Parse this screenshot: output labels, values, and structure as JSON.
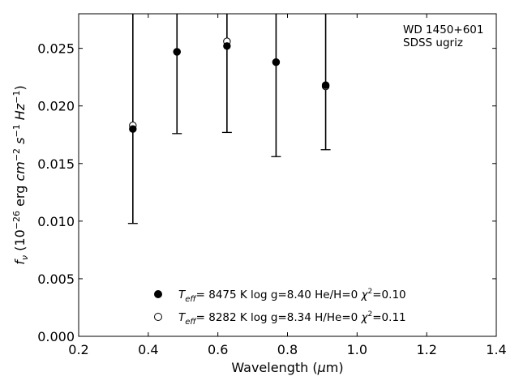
{
  "chart_data": {
    "type": "scatter",
    "xlim": [
      0.2,
      1.4
    ],
    "ylim": [
      0.0,
      0.028
    ],
    "x_ticks": [
      "0.2",
      "0.4",
      "0.6",
      "0.8",
      "1.0",
      "1.2",
      "1.4"
    ],
    "y_ticks": [
      "0.000",
      "0.005",
      "0.010",
      "0.015",
      "0.020",
      "0.025"
    ],
    "xlabel": "Wavelength (μm)",
    "ylabel": "f_ν (10^-26 erg cm^-2 s^-1 Hz^-1)",
    "annotation": [
      "WD 1450+601",
      "SDSS ugriz"
    ],
    "grid": false,
    "observed": {
      "x": [
        0.3557,
        0.4825,
        0.6261,
        0.7672,
        0.9097
      ],
      "y": [
        0.018,
        0.0247,
        0.0252,
        0.0238,
        0.0218
      ],
      "err_low": [
        0.0098,
        0.0176,
        0.0177,
        0.0156,
        0.0162
      ],
      "err_high": [
        0.029,
        0.029,
        0.029,
        0.029,
        0.029
      ],
      "marker": "filled circle",
      "color": "#000000"
    },
    "model": {
      "x": [
        0.3557,
        0.4825,
        0.6261,
        0.7672,
        0.9097
      ],
      "y": [
        0.0183,
        0.0247,
        0.0256,
        0.0238,
        0.0217
      ],
      "marker": "open circle",
      "color": "#000000"
    },
    "legend": [
      {
        "marker": "filled",
        "teff": "8475 K",
        "logg": "log g=8.40",
        "comp": "He/H=0",
        "chi": "=0.10"
      },
      {
        "marker": "open",
        "teff": "8282 K",
        "logg": "log g=8.34",
        "comp": "H/He=0",
        "chi": "=0.11"
      }
    ],
    "legend_placement": "lower-center"
  }
}
